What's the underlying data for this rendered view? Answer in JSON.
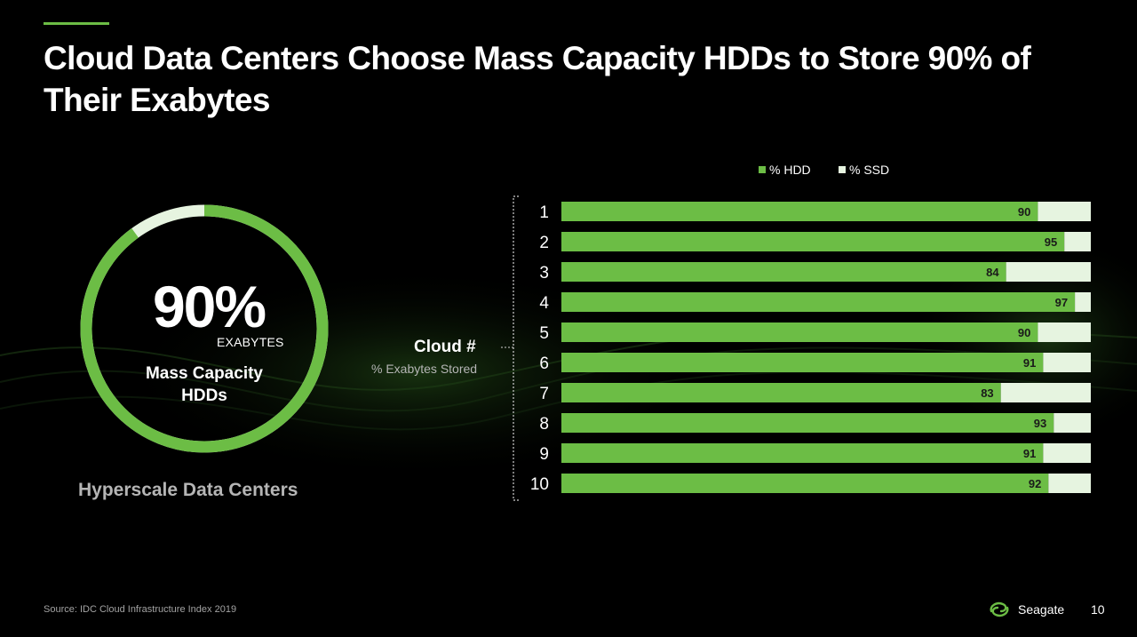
{
  "slide": {
    "title": "Cloud Data Centers Choose Mass Capacity HDDs to Store 90% of Their Exabytes",
    "headline_value": "90%",
    "headline_unit": "EXABYTES",
    "headline_caption": "Mass Capacity HDDs",
    "headline_fraction": 0.9,
    "left_footer": "Hyperscale Data Centers",
    "axis_title": "Cloud #",
    "axis_subtitle": "% Exabytes Stored",
    "source": "Source: IDC Cloud Infrastructure Index 2019",
    "brand": "Seagate",
    "page_number": "10"
  },
  "colors": {
    "background": "#000000",
    "hdd_green": "#6cbd45",
    "ssd_white": "#e6f4e0",
    "accent": "#6cbd45"
  },
  "icons": {
    "brand_logo": "seagate-swirl-icon"
  },
  "chart_data": {
    "type": "bar",
    "orientation": "horizontal",
    "stacked": true,
    "categories": [
      "1",
      "2",
      "3",
      "4",
      "5",
      "6",
      "7",
      "8",
      "9",
      "10"
    ],
    "series": [
      {
        "name": "% HDD",
        "values": [
          90,
          95,
          84,
          97,
          90,
          91,
          83,
          93,
          91,
          92
        ]
      },
      {
        "name": "% SSD",
        "values": [
          10,
          5,
          16,
          3,
          10,
          9,
          17,
          7,
          9,
          8
        ]
      }
    ],
    "xlim": [
      0,
      100
    ],
    "legend_position": "top",
    "data_labels": "HDD value at bar end",
    "grid": false
  }
}
